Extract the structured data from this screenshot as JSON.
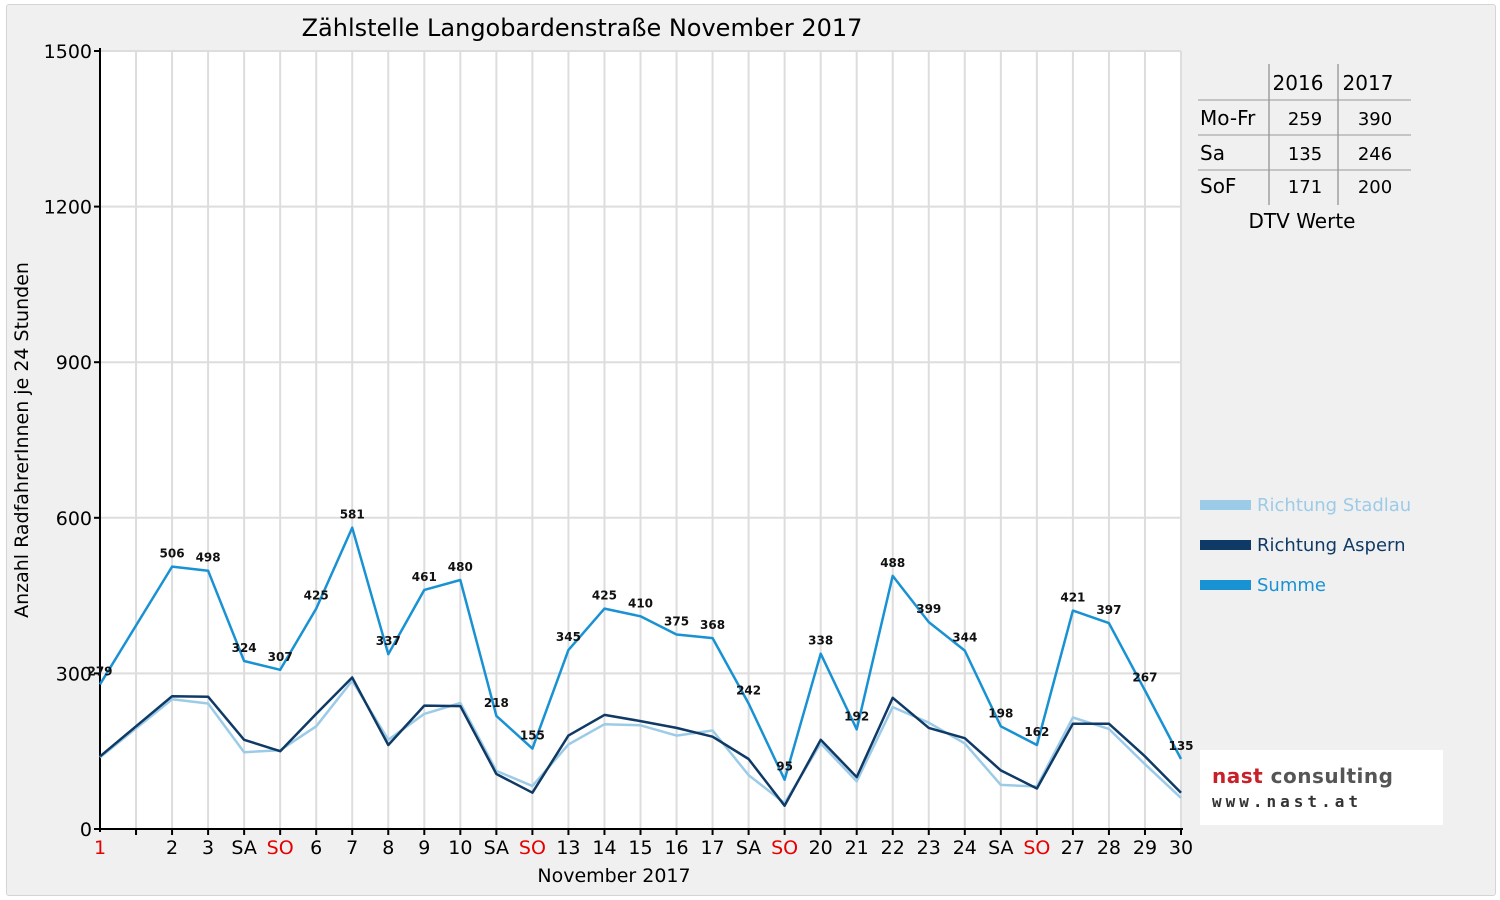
{
  "title": "Zählstelle Langobardenstraße November 2017",
  "colors": {
    "stadlau": "#9ccbe8",
    "aspern": "#0f3a66",
    "summe": "#1992d4",
    "sunday": "#e60000",
    "text": "#000000"
  },
  "chart_data": {
    "type": "line",
    "title": "Zählstelle Langobardenstraße November 2017",
    "xlabel": "November 2017",
    "ylabel": "Anzahl RadfahrerInnen je 24 Stunden",
    "ylim": [
      0,
      1500
    ],
    "yticks": [
      0,
      300,
      600,
      900,
      1200,
      1500
    ],
    "grid": true,
    "legend_position": "right",
    "categories": [
      "1",
      "2",
      "3",
      "SA",
      "SO",
      "6",
      "7",
      "8",
      "9",
      "10",
      "SA",
      "SO",
      "13",
      "14",
      "15",
      "16",
      "17",
      "SA",
      "SO",
      "20",
      "21",
      "22",
      "23",
      "24",
      "SA",
      "SO",
      "27",
      "28",
      "29",
      "30"
    ],
    "red_categories": [
      0,
      4,
      11,
      18,
      25
    ],
    "series": [
      {
        "name": "Richtung Stadlau",
        "color": "#9ccbe8",
        "values": [
          138,
          250,
          242,
          148,
          152,
          198,
          286,
          172,
          222,
          243,
          112,
          83,
          163,
          202,
          200,
          180,
          190,
          104,
          50,
          165,
          92,
          235,
          205,
          165,
          85,
          82,
          215,
          193,
          125,
          60
        ]
      },
      {
        "name": "Richtung Aspern",
        "color": "#0f3a66",
        "values": [
          140,
          256,
          255,
          172,
          150,
          222,
          292,
          162,
          238,
          237,
          106,
          70,
          180,
          220,
          208,
          195,
          178,
          135,
          45,
          172,
          100,
          253,
          195,
          175,
          113,
          78,
          203,
          203,
          140,
          70
        ]
      },
      {
        "name": "Summe",
        "color": "#1992d4",
        "values": [
          279,
          506,
          498,
          324,
          307,
          425,
          581,
          337,
          461,
          480,
          218,
          155,
          345,
          425,
          410,
          375,
          368,
          242,
          95,
          338,
          192,
          488,
          399,
          344,
          198,
          162,
          421,
          397,
          267,
          135
        ],
        "labels": [
          "279",
          "506",
          "498",
          "324",
          "307",
          "425",
          "581",
          "337",
          "461",
          "480",
          "218",
          "155",
          "345",
          "425",
          "410",
          "375",
          "368",
          "242",
          "95",
          "338",
          "192",
          "488",
          "399",
          "344",
          "198",
          "162",
          "421",
          "397",
          "267",
          "135"
        ]
      }
    ]
  },
  "dtv_table": {
    "headers": [
      "",
      "2016",
      "2017"
    ],
    "rows": [
      {
        "label": "Mo-Fr",
        "v2016": "259",
        "v2017": "390"
      },
      {
        "label": "Sa",
        "v2016": "135",
        "v2017": "246"
      },
      {
        "label": "SoF",
        "v2016": "171",
        "v2017": "200"
      }
    ],
    "caption": "DTV Werte"
  },
  "logo": {
    "name_part1": "nast",
    "name_part2": " consulting",
    "url": "www.nast.at"
  }
}
